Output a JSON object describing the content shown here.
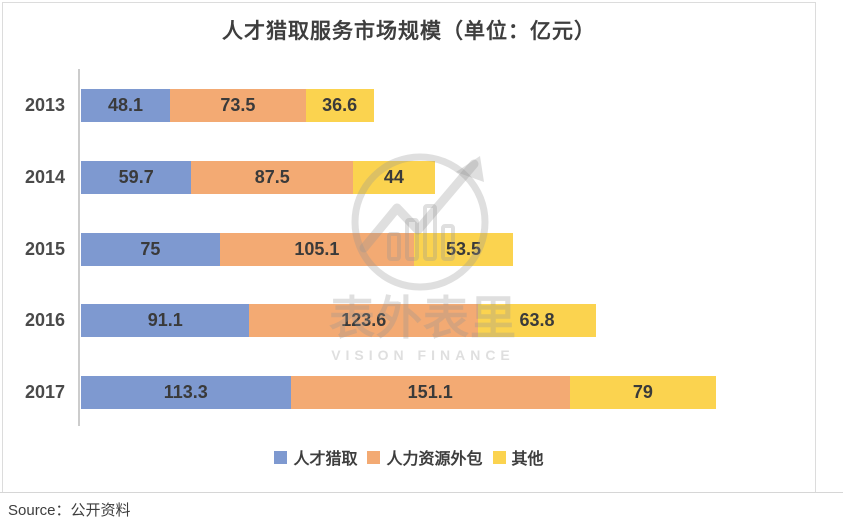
{
  "title": "人才猎取服务市场规模（单位：亿元）",
  "source_label": "Source：公开资料",
  "watermark": {
    "cn": "表外表里",
    "en": "VISION FINANCE"
  },
  "colors": {
    "blue": "#7e99d0",
    "orange": "#f3aa73",
    "yellow": "#fbd34f",
    "border": "#dcdcdc"
  },
  "chart_data": {
    "type": "bar",
    "orientation": "horizontal",
    "stacked": true,
    "title": "人才猎取服务市场规模（单位：亿元）",
    "unit": "亿元",
    "categories": [
      "2013",
      "2014",
      "2015",
      "2016",
      "2017"
    ],
    "series": [
      {
        "name": "人才猎取",
        "color": "#7e99d0",
        "values": [
          48.1,
          59.7,
          75,
          91.1,
          113.3
        ]
      },
      {
        "name": "人力资源外包",
        "color": "#f3aa73",
        "values": [
          73.5,
          87.5,
          105.1,
          123.6,
          151.1
        ]
      },
      {
        "name": "其他",
        "color": "#fbd34f",
        "values": [
          36.6,
          44,
          53.5,
          63.8,
          79
        ]
      }
    ],
    "totals": [
      158.2,
      191.2,
      233.6,
      278.5,
      343.4
    ],
    "xlim": [
      0,
      345
    ],
    "grid": false,
    "legend_position": "bottom",
    "value_labels": "inside",
    "source": "公开资料"
  }
}
